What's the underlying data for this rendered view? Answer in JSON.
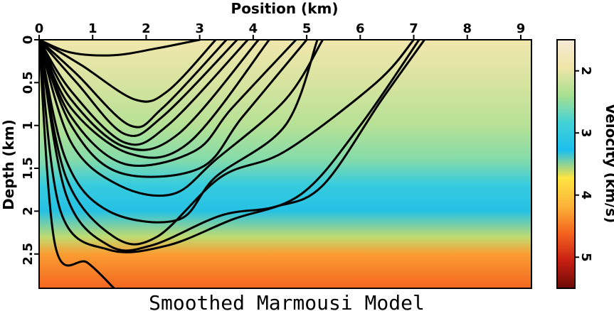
{
  "chart_data": {
    "type": "heatmap",
    "title": "Smoothed Marmousi Model",
    "xlabel": "Position (km)",
    "ylabel": "Depth (km)",
    "colorbar_label": "Velocity (km/s)",
    "xlim": [
      0,
      9.2
    ],
    "ylim": [
      0,
      2.9
    ],
    "clim": [
      1.5,
      5.5
    ],
    "x_ticks": [
      0,
      1,
      2,
      3,
      4,
      5,
      6,
      7,
      8,
      9
    ],
    "y_ticks": [
      0,
      0.5,
      1,
      1.5,
      2,
      2.5
    ],
    "colorbar_ticks": [
      2,
      3,
      4,
      5
    ],
    "x_axis_position": "top",
    "colormap": [
      "#f5ead6",
      "#f0e6a8",
      "#a8e090",
      "#44d2d7",
      "#1bbfed",
      "#fde541",
      "#fcb53a",
      "#f4641f",
      "#c81f12",
      "#6b0a07"
    ],
    "velocity_layers": [
      {
        "depth": 0.0,
        "velocity": 1.9
      },
      {
        "depth": 0.5,
        "velocity": 2.1
      },
      {
        "depth": 1.0,
        "velocity": 2.3
      },
      {
        "depth": 1.4,
        "velocity": 2.55
      },
      {
        "depth": 1.7,
        "velocity": 3.0
      },
      {
        "depth": 2.0,
        "velocity": 3.3
      },
      {
        "depth": 2.3,
        "velocity": 3.6
      },
      {
        "depth": 2.5,
        "velocity": 4.3
      },
      {
        "depth": 2.9,
        "velocity": 4.6
      }
    ],
    "series": [
      {
        "points": [
          [
            0,
            0
          ],
          [
            0.6,
            0.15
          ],
          [
            1.4,
            0.18
          ],
          [
            2.2,
            0.1
          ],
          [
            3.0,
            0.0
          ]
        ]
      },
      {
        "points": [
          [
            0,
            0
          ],
          [
            0.8,
            0.3
          ],
          [
            1.8,
            0.7
          ],
          [
            2.4,
            0.6
          ],
          [
            3.3,
            0.0
          ]
        ]
      },
      {
        "points": [
          [
            0,
            0
          ],
          [
            0.7,
            0.4
          ],
          [
            1.7,
            1.0
          ],
          [
            2.3,
            0.8
          ],
          [
            3.5,
            0.0
          ]
        ]
      },
      {
        "points": [
          [
            0,
            0
          ],
          [
            0.7,
            0.5
          ],
          [
            1.6,
            1.1
          ],
          [
            2.3,
            0.9
          ],
          [
            3.7,
            0.0
          ]
        ]
      },
      {
        "points": [
          [
            0,
            0
          ],
          [
            0.6,
            0.6
          ],
          [
            1.6,
            1.2
          ],
          [
            2.4,
            1.0
          ],
          [
            3.9,
            0.0
          ]
        ]
      },
      {
        "points": [
          [
            0,
            0
          ],
          [
            0.6,
            0.7
          ],
          [
            1.6,
            1.25
          ],
          [
            2.6,
            1.1
          ],
          [
            4.1,
            0.0
          ]
        ]
      },
      {
        "points": [
          [
            0,
            0
          ],
          [
            0.6,
            0.8
          ],
          [
            1.7,
            1.33
          ],
          [
            2.8,
            1.2
          ],
          [
            4.3,
            0.0
          ]
        ]
      },
      {
        "points": [
          [
            0,
            0
          ],
          [
            0.6,
            0.9
          ],
          [
            1.6,
            1.45
          ],
          [
            2.9,
            1.3
          ],
          [
            3.6,
            0.8
          ],
          [
            4.8,
            0.0
          ]
        ]
      },
      {
        "points": [
          [
            0,
            0
          ],
          [
            0.6,
            1.0
          ],
          [
            1.5,
            1.55
          ],
          [
            3.0,
            1.5
          ],
          [
            3.8,
            0.9
          ],
          [
            5.0,
            0.0
          ]
        ]
      },
      {
        "points": [
          [
            0,
            0
          ],
          [
            0.6,
            1.2
          ],
          [
            1.5,
            1.7
          ],
          [
            2.5,
            1.8
          ],
          [
            3.3,
            1.4
          ],
          [
            4.6,
            0.7
          ],
          [
            5.3,
            0.0
          ]
        ]
      },
      {
        "points": [
          [
            0,
            0
          ],
          [
            0.5,
            1.4
          ],
          [
            1.3,
            2.0
          ],
          [
            2.6,
            2.1
          ],
          [
            3.3,
            1.6
          ],
          [
            4.6,
            1.0
          ],
          [
            5.2,
            0.0
          ]
        ]
      },
      {
        "points": [
          [
            0,
            0
          ],
          [
            0.5,
            1.6
          ],
          [
            1.4,
            2.3
          ],
          [
            2.2,
            2.3
          ],
          [
            3.4,
            1.6
          ],
          [
            4.6,
            1.3
          ],
          [
            6.3,
            0.5
          ],
          [
            7.0,
            0.0
          ]
        ]
      },
      {
        "points": [
          [
            0,
            0
          ],
          [
            0.5,
            1.8
          ],
          [
            1.3,
            2.4
          ],
          [
            2.1,
            2.4
          ],
          [
            3.4,
            2.05
          ],
          [
            4.4,
            1.95
          ],
          [
            5.3,
            1.7
          ],
          [
            6.4,
            0.7
          ],
          [
            7.2,
            0.0
          ]
        ]
      },
      {
        "points": [
          [
            0,
            0
          ],
          [
            0.4,
            2.0
          ],
          [
            1.3,
            2.45
          ],
          [
            2.4,
            2.4
          ],
          [
            3.6,
            2.1
          ],
          [
            4.9,
            1.8
          ],
          [
            6.0,
            1.0
          ],
          [
            7.1,
            0.0
          ]
        ]
      },
      {
        "points": [
          [
            0,
            0
          ],
          [
            0.3,
            2.4
          ],
          [
            0.9,
            2.6
          ],
          [
            1.4,
            2.9
          ]
        ]
      }
    ]
  }
}
